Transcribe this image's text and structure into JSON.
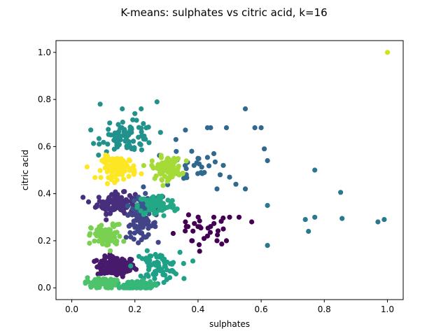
{
  "chart_data": {
    "type": "scatter",
    "title": "K-means: sulphates vs citric acid, k=16",
    "xlabel": "sulphates",
    "ylabel": "citric acid",
    "xlim": [
      -0.05,
      1.05
    ],
    "ylim": [
      -0.05,
      1.05
    ],
    "xticks": [
      "0.0",
      "0.2",
      "0.4",
      "0.6",
      "0.8",
      "1.0"
    ],
    "yticks": [
      "0.0",
      "0.2",
      "0.4",
      "0.6",
      "0.8",
      "1.0"
    ],
    "grid": false,
    "clusters": [
      {
        "color": "#440154",
        "center": [
          0.42,
          0.25
        ],
        "spread": [
          0.08,
          0.06
        ],
        "count": 35,
        "points": [
          [
            0.37,
            0.31
          ],
          [
            0.4,
            0.26
          ],
          [
            0.43,
            0.22
          ],
          [
            0.45,
            0.3
          ],
          [
            0.48,
            0.25
          ],
          [
            0.5,
            0.3
          ],
          [
            0.53,
            0.3
          ],
          [
            0.57,
            0.28
          ],
          [
            0.38,
            0.2
          ],
          [
            0.36,
            0.28
          ],
          [
            0.46,
            0.2
          ],
          [
            0.49,
            0.2
          ]
        ]
      },
      {
        "color": "#481a6c",
        "center": [
          0.14,
          0.09
        ],
        "spread": [
          0.05,
          0.035
        ],
        "count": 130,
        "points": []
      },
      {
        "color": "#472f7d",
        "center": [
          0.14,
          0.36
        ],
        "spread": [
          0.05,
          0.035
        ],
        "count": 110,
        "points": []
      },
      {
        "color": "#414487",
        "center": [
          0.22,
          0.27
        ],
        "spread": [
          0.04,
          0.05
        ],
        "count": 70,
        "points": []
      },
      {
        "color": "#39568c",
        "center": [
          0.24,
          0.35
        ],
        "spread": [
          0.05,
          0.04
        ],
        "count": 55,
        "points": []
      },
      {
        "color": "#31688e",
        "center": [
          0.36,
          0.5
        ],
        "spread": [
          0.1,
          0.07
        ],
        "count": 45,
        "points": [
          [
            0.44,
            0.68
          ],
          [
            0.43,
            0.68
          ],
          [
            0.49,
            0.68
          ],
          [
            0.45,
            0.57
          ],
          [
            0.48,
            0.52
          ],
          [
            0.52,
            0.44
          ],
          [
            0.5,
            0.47
          ],
          [
            0.38,
            0.58
          ],
          [
            0.4,
            0.55
          ],
          [
            0.47,
            0.48
          ],
          [
            0.55,
            0.76
          ],
          [
            0.58,
            0.68
          ],
          [
            0.6,
            0.68
          ],
          [
            0.61,
            0.59
          ],
          [
            0.62,
            0.54
          ],
          [
            0.42,
            0.49
          ],
          [
            0.46,
            0.42
          ],
          [
            0.33,
            0.63
          ],
          [
            0.36,
            0.67
          ],
          [
            0.55,
            0.42
          ]
        ]
      },
      {
        "color": "#2a788e",
        "center": [
          0.75,
          0.35
        ],
        "spread": [
          0.12,
          0.06
        ],
        "count": 10,
        "points": [
          [
            0.62,
            0.35
          ],
          [
            0.62,
            0.18
          ],
          [
            0.74,
            0.29
          ],
          [
            0.75,
            0.24
          ],
          [
            0.77,
            0.3
          ],
          [
            0.97,
            0.28
          ],
          [
            0.99,
            0.29
          ],
          [
            0.77,
            0.5
          ]
        ]
      },
      {
        "color": "#21918c",
        "center": [
          0.18,
          0.64
        ],
        "spread": [
          0.07,
          0.05
        ],
        "count": 90,
        "points": [
          [
            0.09,
            0.78
          ],
          [
            0.16,
            0.76
          ],
          [
            0.22,
            0.76
          ],
          [
            0.27,
            0.79
          ],
          [
            0.12,
            0.7
          ],
          [
            0.2,
            0.74
          ]
        ]
      },
      {
        "color": "#1fa187",
        "center": [
          0.27,
          0.09
        ],
        "spread": [
          0.06,
          0.05
        ],
        "count": 80,
        "points": []
      },
      {
        "color": "#22a884",
        "center": [
          0.27,
          0.35
        ],
        "spread": [
          0.05,
          0.04
        ],
        "count": 80,
        "points": []
      },
      {
        "color": "#35b779",
        "center": [
          0.21,
          0.01
        ],
        "spread": [
          0.04,
          0.015
        ],
        "count": 120,
        "points": []
      },
      {
        "color": "#4ec36b",
        "center": [
          0.09,
          0.02
        ],
        "spread": [
          0.04,
          0.02
        ],
        "count": 55,
        "points": []
      },
      {
        "color": "#7ad151",
        "center": [
          0.11,
          0.22
        ],
        "spread": [
          0.04,
          0.04
        ],
        "count": 90,
        "points": []
      },
      {
        "color": "#a5db36",
        "center": [
          0.3,
          0.51
        ],
        "spread": [
          0.04,
          0.04
        ],
        "count": 85,
        "points": []
      },
      {
        "color": "#fde725",
        "center": [
          0.15,
          0.51
        ],
        "spread": [
          0.045,
          0.04
        ],
        "count": 95,
        "points": []
      },
      {
        "color": "#d2e21b",
        "center": [
          1.0,
          1.0
        ],
        "spread": [
          0,
          0
        ],
        "count": 1,
        "points": [
          [
            1.0,
            1.0
          ]
        ]
      }
    ]
  }
}
